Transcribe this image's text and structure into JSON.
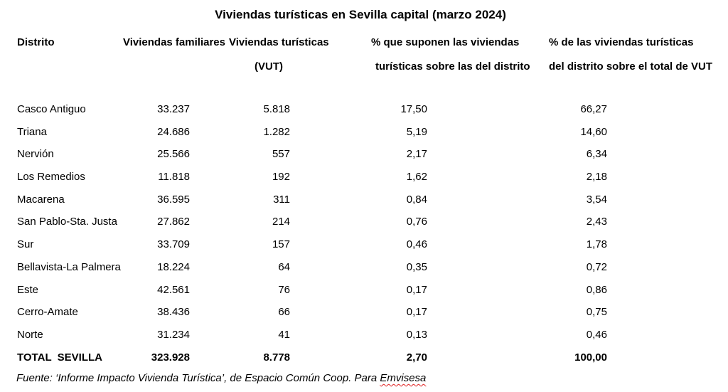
{
  "title": "Viviendas turísticas en Sevilla capital (marzo 2024)",
  "table": {
    "headers": {
      "col1": "Distrito",
      "col2": "Viviendas familiares",
      "col3_line1": "Viviendas turísticas",
      "col3_line2": "(VUT)",
      "col4_line1": "% que suponen las viviendas",
      "col4_line2": "turísticas sobre las del distrito",
      "col5_line1": "% de las viviendas turísticas",
      "col5_line2": "del distrito sobre el total de VUT"
    },
    "rows": [
      {
        "district": "Casco Antiguo",
        "familiares": "33.237",
        "vut": "5.818",
        "pct_distrito": "17,50",
        "pct_total": "66,27"
      },
      {
        "district": "Triana",
        "familiares": "24.686",
        "vut": "1.282",
        "pct_distrito": "5,19",
        "pct_total": "14,60"
      },
      {
        "district": "Nervión",
        "familiares": "25.566",
        "vut": "557",
        "pct_distrito": "2,17",
        "pct_total": "6,34"
      },
      {
        "district": "Los Remedios",
        "familiares": "11.818",
        "vut": "192",
        "pct_distrito": "1,62",
        "pct_total": "2,18"
      },
      {
        "district": "Macarena",
        "familiares": "36.595",
        "vut": "311",
        "pct_distrito": "0,84",
        "pct_total": "3,54"
      },
      {
        "district": "San Pablo-Sta. Justa",
        "familiares": "27.862",
        "vut": "214",
        "pct_distrito": "0,76",
        "pct_total": "2,43"
      },
      {
        "district": "Sur",
        "familiares": "33.709",
        "vut": "157",
        "pct_distrito": "0,46",
        "pct_total": "1,78"
      },
      {
        "district": "Bellavista-La Palmera",
        "familiares": "18.224",
        "vut": "64",
        "pct_distrito": "0,35",
        "pct_total": "0,72"
      },
      {
        "district": "Este",
        "familiares": "42.561",
        "vut": "76",
        "pct_distrito": "0,17",
        "pct_total": "0,86"
      },
      {
        "district": "Cerro-Amate",
        "familiares": "38.436",
        "vut": "66",
        "pct_distrito": "0,17",
        "pct_total": "0,75"
      },
      {
        "district": "Norte",
        "familiares": "31.234",
        "vut": "41",
        "pct_distrito": "0,13",
        "pct_total": "0,46"
      }
    ],
    "total": {
      "district": "TOTAL  SEVILLA",
      "familiares": "323.928",
      "vut": "8.778",
      "pct_distrito": "2,70",
      "pct_total": "100,00"
    }
  },
  "source": {
    "prefix": "Fuente: ‘Informe Impacto Vivienda Turística’, de Espacio Común Coop. Para ",
    "highlight": "Emvisesa"
  }
}
